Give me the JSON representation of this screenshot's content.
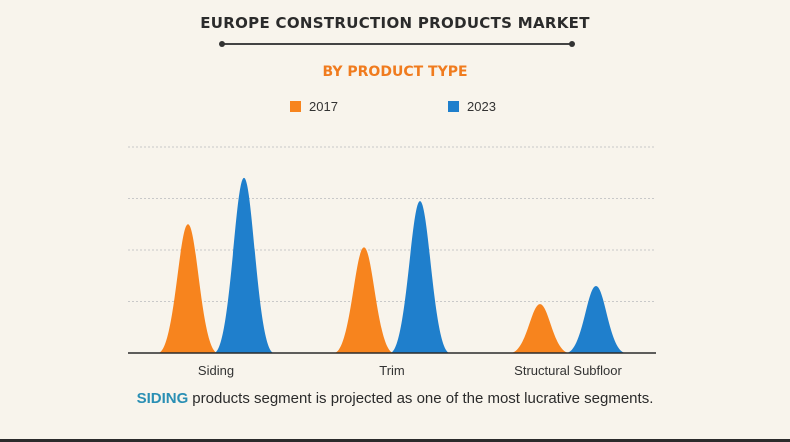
{
  "title": "EUROPE CONSTRUCTION PRODUCTS MARKET",
  "subtitle": "BY PRODUCT TYPE",
  "colors": {
    "accent": "#f07b1e",
    "s2017": "#f7841e",
    "s2023": "#1f7fcc",
    "grid": "#c9c9c9",
    "caption_highlight": "#2a8fb4"
  },
  "caption": {
    "highlight": "SIDING",
    "text": "products segment is projected as one of the most lucrative segments."
  },
  "chart_data": {
    "type": "area",
    "title": "EUROPE CONSTRUCTION PRODUCTS MARKET",
    "subtitle": "BY PRODUCT TYPE",
    "categories": [
      "Siding",
      "Trim",
      "Structural Subfloor"
    ],
    "series": [
      {
        "name": "2017",
        "color": "#f7841e",
        "values": [
          2.5,
          2.05,
          0.95
        ]
      },
      {
        "name": "2023",
        "color": "#1f7fcc",
        "values": [
          3.4,
          2.95,
          1.3
        ]
      }
    ],
    "ylim": [
      0,
      4
    ],
    "grid": true,
    "yticks_shown": false,
    "legend_position": "top-center"
  }
}
